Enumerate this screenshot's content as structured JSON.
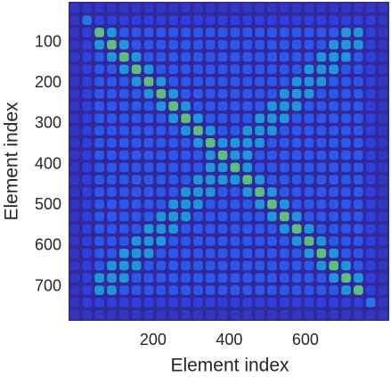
{
  "chart_data": {
    "type": "heatmap",
    "x_label": "Element index",
    "y_label": "Element index",
    "xlim": [
      -22,
      820
    ],
    "ylim": [
      0,
      784
    ],
    "y_reversed": true,
    "xticks": [
      200,
      400,
      600
    ],
    "yticks": [
      100,
      200,
      300,
      400,
      500,
      600,
      700
    ],
    "colormap": "parula",
    "clim": [
      0,
      1
    ],
    "values": [
      [
        0.2,
        0.2,
        0.2,
        0.2,
        0.2,
        0.2,
        0.2,
        0.2,
        0.2,
        0.2,
        0.2,
        0.2,
        0.2,
        0.2,
        0.2,
        0.2,
        0.2,
        0.2,
        0.2,
        0.2,
        0.2,
        0.2,
        0.2,
        0.2,
        0.2,
        0.2
      ],
      [
        0.2,
        0.5,
        0.3,
        0.3,
        0.3,
        0.3,
        0.3,
        0.3,
        0.3,
        0.3,
        0.3,
        0.3,
        0.3,
        0.3,
        0.3,
        0.3,
        0.3,
        0.3,
        0.3,
        0.3,
        0.3,
        0.3,
        0.3,
        0.3,
        0.3,
        0.2
      ],
      [
        0.2,
        0.3,
        0.8,
        0.6,
        0.4,
        0.4,
        0.4,
        0.4,
        0.4,
        0.4,
        0.4,
        0.4,
        0.4,
        0.4,
        0.4,
        0.4,
        0.4,
        0.4,
        0.4,
        0.4,
        0.4,
        0.4,
        0.6,
        0.6,
        0.3,
        0.2
      ],
      [
        0.2,
        0.3,
        0.6,
        0.8,
        0.6,
        0.4,
        0.4,
        0.4,
        0.4,
        0.4,
        0.4,
        0.4,
        0.4,
        0.4,
        0.4,
        0.4,
        0.4,
        0.4,
        0.4,
        0.4,
        0.4,
        0.6,
        0.6,
        0.6,
        0.3,
        0.2
      ],
      [
        0.2,
        0.3,
        0.4,
        0.6,
        0.8,
        0.6,
        0.4,
        0.4,
        0.4,
        0.4,
        0.4,
        0.4,
        0.4,
        0.4,
        0.4,
        0.4,
        0.4,
        0.4,
        0.4,
        0.4,
        0.6,
        0.6,
        0.6,
        0.4,
        0.3,
        0.2
      ],
      [
        0.2,
        0.3,
        0.4,
        0.4,
        0.6,
        0.8,
        0.6,
        0.4,
        0.4,
        0.4,
        0.4,
        0.4,
        0.4,
        0.4,
        0.4,
        0.4,
        0.4,
        0.4,
        0.4,
        0.6,
        0.6,
        0.6,
        0.4,
        0.4,
        0.3,
        0.2
      ],
      [
        0.2,
        0.3,
        0.4,
        0.4,
        0.4,
        0.6,
        0.8,
        0.6,
        0.4,
        0.4,
        0.4,
        0.4,
        0.4,
        0.4,
        0.4,
        0.4,
        0.4,
        0.4,
        0.6,
        0.6,
        0.6,
        0.4,
        0.4,
        0.4,
        0.3,
        0.2
      ],
      [
        0.2,
        0.3,
        0.4,
        0.4,
        0.4,
        0.4,
        0.6,
        0.8,
        0.6,
        0.4,
        0.4,
        0.4,
        0.4,
        0.4,
        0.4,
        0.4,
        0.4,
        0.6,
        0.6,
        0.6,
        0.4,
        0.4,
        0.4,
        0.4,
        0.3,
        0.2
      ],
      [
        0.2,
        0.3,
        0.4,
        0.4,
        0.4,
        0.4,
        0.4,
        0.6,
        0.8,
        0.6,
        0.4,
        0.4,
        0.4,
        0.4,
        0.4,
        0.4,
        0.6,
        0.6,
        0.6,
        0.4,
        0.4,
        0.4,
        0.4,
        0.4,
        0.3,
        0.2
      ],
      [
        0.2,
        0.3,
        0.4,
        0.4,
        0.4,
        0.4,
        0.4,
        0.4,
        0.6,
        0.8,
        0.6,
        0.4,
        0.4,
        0.4,
        0.4,
        0.6,
        0.6,
        0.6,
        0.4,
        0.4,
        0.4,
        0.4,
        0.4,
        0.4,
        0.3,
        0.2
      ],
      [
        0.2,
        0.3,
        0.4,
        0.4,
        0.4,
        0.4,
        0.4,
        0.4,
        0.4,
        0.6,
        0.8,
        0.6,
        0.4,
        0.4,
        0.6,
        0.6,
        0.6,
        0.4,
        0.4,
        0.4,
        0.4,
        0.4,
        0.4,
        0.4,
        0.3,
        0.2
      ],
      [
        0.2,
        0.3,
        0.4,
        0.4,
        0.4,
        0.4,
        0.4,
        0.4,
        0.4,
        0.4,
        0.6,
        0.8,
        0.6,
        0.6,
        0.6,
        0.6,
        0.4,
        0.4,
        0.4,
        0.4,
        0.4,
        0.4,
        0.4,
        0.4,
        0.3,
        0.2
      ],
      [
        0.2,
        0.3,
        0.4,
        0.4,
        0.4,
        0.4,
        0.4,
        0.4,
        0.4,
        0.4,
        0.4,
        0.6,
        0.8,
        0.6,
        0.6,
        0.4,
        0.4,
        0.4,
        0.4,
        0.4,
        0.4,
        0.4,
        0.4,
        0.4,
        0.3,
        0.2
      ],
      [
        0.2,
        0.3,
        0.4,
        0.4,
        0.4,
        0.4,
        0.4,
        0.4,
        0.4,
        0.4,
        0.4,
        0.6,
        0.6,
        0.8,
        0.6,
        0.4,
        0.4,
        0.4,
        0.4,
        0.4,
        0.4,
        0.4,
        0.4,
        0.4,
        0.3,
        0.2
      ],
      [
        0.2,
        0.3,
        0.4,
        0.4,
        0.4,
        0.4,
        0.4,
        0.4,
        0.4,
        0.4,
        0.6,
        0.6,
        0.6,
        0.6,
        0.8,
        0.6,
        0.4,
        0.4,
        0.4,
        0.4,
        0.4,
        0.4,
        0.4,
        0.4,
        0.3,
        0.2
      ],
      [
        0.2,
        0.3,
        0.4,
        0.4,
        0.4,
        0.4,
        0.4,
        0.4,
        0.4,
        0.6,
        0.6,
        0.6,
        0.4,
        0.4,
        0.6,
        0.8,
        0.6,
        0.4,
        0.4,
        0.4,
        0.4,
        0.4,
        0.4,
        0.4,
        0.3,
        0.2
      ],
      [
        0.2,
        0.3,
        0.4,
        0.4,
        0.4,
        0.4,
        0.4,
        0.4,
        0.6,
        0.6,
        0.6,
        0.4,
        0.4,
        0.4,
        0.4,
        0.6,
        0.8,
        0.6,
        0.4,
        0.4,
        0.4,
        0.4,
        0.4,
        0.4,
        0.3,
        0.2
      ],
      [
        0.2,
        0.3,
        0.4,
        0.4,
        0.4,
        0.4,
        0.4,
        0.6,
        0.6,
        0.6,
        0.4,
        0.4,
        0.4,
        0.4,
        0.4,
        0.4,
        0.6,
        0.8,
        0.6,
        0.4,
        0.4,
        0.4,
        0.4,
        0.4,
        0.3,
        0.2
      ],
      [
        0.2,
        0.3,
        0.4,
        0.4,
        0.4,
        0.4,
        0.6,
        0.6,
        0.6,
        0.4,
        0.4,
        0.4,
        0.4,
        0.4,
        0.4,
        0.4,
        0.4,
        0.6,
        0.8,
        0.6,
        0.4,
        0.4,
        0.4,
        0.4,
        0.3,
        0.2
      ],
      [
        0.2,
        0.3,
        0.4,
        0.4,
        0.4,
        0.6,
        0.6,
        0.6,
        0.4,
        0.4,
        0.4,
        0.4,
        0.4,
        0.4,
        0.4,
        0.4,
        0.4,
        0.4,
        0.6,
        0.8,
        0.6,
        0.4,
        0.4,
        0.4,
        0.3,
        0.2
      ],
      [
        0.2,
        0.3,
        0.4,
        0.4,
        0.6,
        0.6,
        0.6,
        0.4,
        0.4,
        0.4,
        0.4,
        0.4,
        0.4,
        0.4,
        0.4,
        0.4,
        0.4,
        0.4,
        0.4,
        0.6,
        0.8,
        0.6,
        0.4,
        0.4,
        0.3,
        0.2
      ],
      [
        0.2,
        0.3,
        0.4,
        0.6,
        0.6,
        0.6,
        0.4,
        0.4,
        0.4,
        0.4,
        0.4,
        0.4,
        0.4,
        0.4,
        0.4,
        0.4,
        0.4,
        0.4,
        0.4,
        0.4,
        0.6,
        0.8,
        0.6,
        0.4,
        0.3,
        0.2
      ],
      [
        0.2,
        0.3,
        0.6,
        0.6,
        0.6,
        0.4,
        0.4,
        0.4,
        0.4,
        0.4,
        0.4,
        0.4,
        0.4,
        0.4,
        0.4,
        0.4,
        0.4,
        0.4,
        0.4,
        0.4,
        0.4,
        0.6,
        0.8,
        0.6,
        0.3,
        0.2
      ],
      [
        0.2,
        0.3,
        0.6,
        0.6,
        0.4,
        0.4,
        0.4,
        0.4,
        0.4,
        0.4,
        0.4,
        0.4,
        0.4,
        0.4,
        0.4,
        0.4,
        0.4,
        0.4,
        0.4,
        0.4,
        0.4,
        0.4,
        0.6,
        0.8,
        0.3,
        0.2
      ],
      [
        0.2,
        0.3,
        0.3,
        0.3,
        0.3,
        0.3,
        0.3,
        0.3,
        0.3,
        0.3,
        0.3,
        0.3,
        0.3,
        0.3,
        0.3,
        0.3,
        0.3,
        0.3,
        0.3,
        0.3,
        0.3,
        0.3,
        0.3,
        0.3,
        0.5,
        0.2
      ],
      [
        0.2,
        0.2,
        0.2,
        0.2,
        0.2,
        0.2,
        0.2,
        0.2,
        0.2,
        0.2,
        0.2,
        0.2,
        0.2,
        0.2,
        0.2,
        0.2,
        0.2,
        0.2,
        0.2,
        0.2,
        0.2,
        0.2,
        0.2,
        0.2,
        0.2,
        0.2
      ]
    ]
  }
}
